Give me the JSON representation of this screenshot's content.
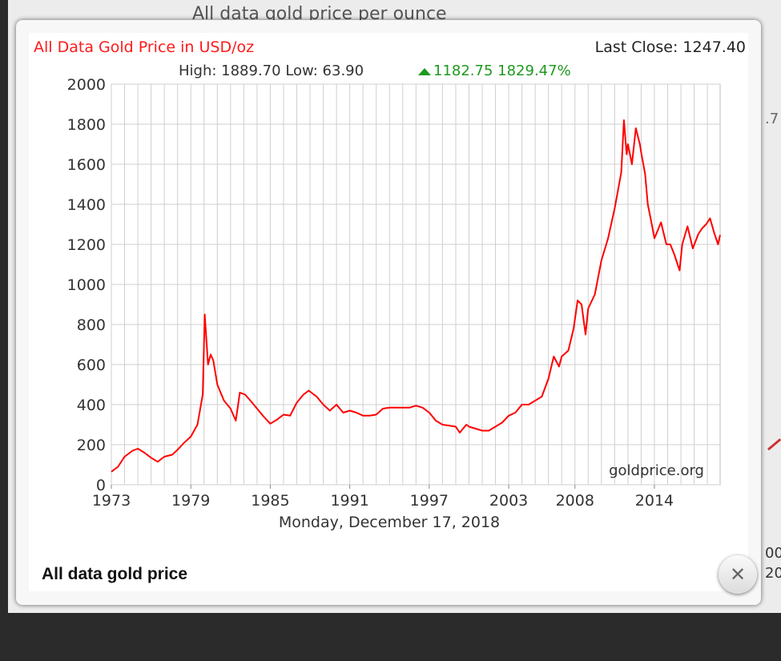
{
  "backdrop": {
    "title_fragment": "All data gold price per ounce",
    "right_fragment": ".7",
    "right_bottom_1": "00",
    "right_bottom_2": "20"
  },
  "lightbox": {
    "caption": "All data gold price",
    "close_icon": "close-icon"
  },
  "chart_header": {
    "title": "All Data Gold Price in USD/oz",
    "last_close": "Last Close: 1247.40",
    "high_low": "High: 1889.70 Low: 63.90",
    "change": "1182.75 1829.47%",
    "change_icon": "triangle-up-icon",
    "watermark": "goldprice.org",
    "date_label": "Monday, December 17, 2018"
  },
  "colors": {
    "title": "#ff1a1a",
    "line": "#ff0000",
    "up": "#1e9a1e",
    "grid": "#cccccc"
  },
  "chart_data": {
    "type": "line",
    "title": "All Data Gold Price in USD/oz",
    "xlabel": "Monday, December 17, 2018",
    "ylabel": "",
    "x_ticks": [
      "1973",
      "1979",
      "1985",
      "1991",
      "1997",
      "2003",
      "2008",
      "2014"
    ],
    "y_ticks": [
      "0",
      "200",
      "400",
      "600",
      "800",
      "1000",
      "1200",
      "1400",
      "1600",
      "1800",
      "2000"
    ],
    "xlim": [
      1973,
      2018.96
    ],
    "ylim": [
      0,
      2000
    ],
    "grid": true,
    "series": [
      {
        "x": [
          1973.0,
          1973.5,
          1974.0,
          1974.6,
          1975.0,
          1975.5,
          1976.0,
          1976.5,
          1977.0,
          1977.6,
          1978.0,
          1978.5,
          1979.0,
          1979.5,
          1979.9,
          1980.05,
          1980.3,
          1980.5,
          1980.7,
          1981.0,
          1981.5,
          1982.0,
          1982.4,
          1982.7,
          1983.1,
          1983.5,
          1984.0,
          1984.5,
          1985.0,
          1985.5,
          1986.0,
          1986.5,
          1987.0,
          1987.5,
          1987.9,
          1988.5,
          1989.0,
          1989.5,
          1990.0,
          1990.5,
          1991.0,
          1991.5,
          1992.0,
          1992.5,
          1993.0,
          1993.5,
          1994.0,
          1994.5,
          1995.0,
          1995.5,
          1996.0,
          1996.5,
          1997.0,
          1997.5,
          1998.0,
          1998.5,
          1999.0,
          1999.3,
          1999.8,
          2000.0,
          2000.5,
          2001.0,
          2001.5,
          2002.0,
          2002.5,
          2003.0,
          2003.5,
          2004.0,
          2004.5,
          2005.0,
          2005.5,
          2006.0,
          2006.4,
          2006.8,
          2007.0,
          2007.5,
          2007.9,
          2008.2,
          2008.5,
          2008.8,
          2009.0,
          2009.5,
          2010.0,
          2010.5,
          2011.0,
          2011.5,
          2011.7,
          2011.9,
          2012.0,
          2012.3,
          2012.6,
          2012.9,
          2013.0,
          2013.3,
          2013.5,
          2013.8,
          2014.0,
          2014.5,
          2014.9,
          2015.2,
          2015.5,
          2015.9,
          2016.1,
          2016.5,
          2016.9,
          2017.3,
          2017.6,
          2017.9,
          2018.2,
          2018.5,
          2018.8,
          2018.96
        ],
        "y": [
          65,
          90,
          140,
          170,
          180,
          160,
          135,
          115,
          140,
          150,
          175,
          210,
          240,
          300,
          450,
          850,
          600,
          650,
          620,
          500,
          420,
          380,
          320,
          460,
          450,
          420,
          380,
          340,
          305,
          325,
          350,
          345,
          410,
          450,
          470,
          440,
          400,
          370,
          400,
          360,
          370,
          360,
          345,
          345,
          350,
          380,
          385,
          385,
          385,
          385,
          395,
          385,
          360,
          320,
          300,
          295,
          290,
          260,
          300,
          290,
          280,
          270,
          270,
          290,
          310,
          345,
          360,
          400,
          400,
          420,
          440,
          530,
          640,
          590,
          640,
          670,
          780,
          920,
          900,
          750,
          880,
          950,
          1120,
          1230,
          1380,
          1560,
          1820,
          1650,
          1700,
          1600,
          1780,
          1700,
          1660,
          1550,
          1400,
          1300,
          1230,
          1310,
          1200,
          1200,
          1150,
          1070,
          1200,
          1290,
          1180,
          1250,
          1280,
          1300,
          1330,
          1260,
          1200,
          1247
        ]
      }
    ]
  }
}
